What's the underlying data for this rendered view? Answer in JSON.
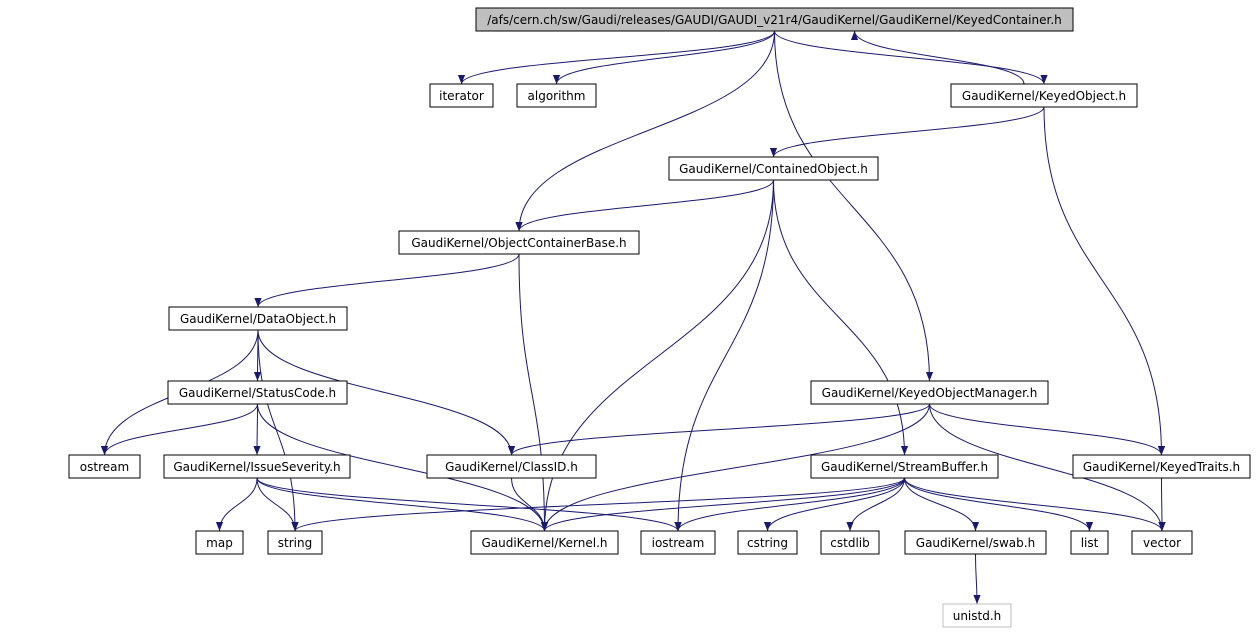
{
  "nodes": [
    {
      "label": "/afs/cern.ch/sw/Gaudi/releases/GAUDI/GAUDI_v21r4/GaudiKernel/GaudiKernel/KeyedContainer.h"
    },
    {
      "label": "iterator"
    },
    {
      "label": "algorithm"
    },
    {
      "label": "GaudiKernel/KeyedObject.h"
    },
    {
      "label": "GaudiKernel/ContainedObject.h"
    },
    {
      "label": "GaudiKernel/ObjectContainerBase.h"
    },
    {
      "label": "GaudiKernel/DataObject.h"
    },
    {
      "label": "GaudiKernel/StatusCode.h"
    },
    {
      "label": "GaudiKernel/KeyedObjectManager.h"
    },
    {
      "label": "ostream"
    },
    {
      "label": "GaudiKernel/IssueSeverity.h"
    },
    {
      "label": "GaudiKernel/ClassID.h"
    },
    {
      "label": "GaudiKernel/StreamBuffer.h"
    },
    {
      "label": "GaudiKernel/KeyedTraits.h"
    },
    {
      "label": "map"
    },
    {
      "label": "string"
    },
    {
      "label": "GaudiKernel/Kernel.h"
    },
    {
      "label": "iostream"
    },
    {
      "label": "cstring"
    },
    {
      "label": "cstdlib"
    },
    {
      "label": "GaudiKernel/swab.h"
    },
    {
      "label": "list"
    },
    {
      "label": "vector"
    },
    {
      "label": "unistd.h"
    }
  ]
}
